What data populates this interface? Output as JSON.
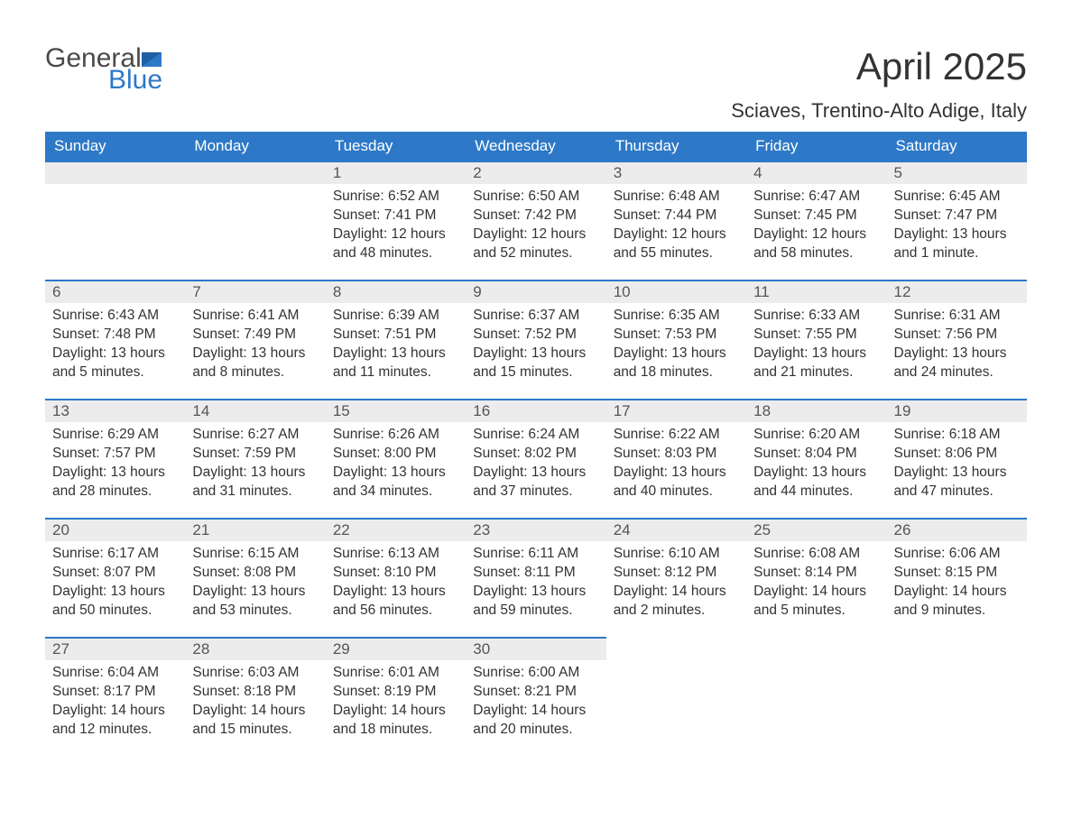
{
  "logo": {
    "word1": "General",
    "word2": "Blue"
  },
  "title": "April 2025",
  "location": "Sciaves, Trentino-Alto Adige, Italy",
  "colors": {
    "header_bg": "#2d79c7",
    "header_text": "#ffffff",
    "daynum_bg": "#ececec",
    "daynum_border": "#2d79c7",
    "body_text": "#333333",
    "logo_gray": "#4a4a4a",
    "logo_blue": "#2d79c7",
    "page_bg": "#ffffff"
  },
  "weekdays": [
    "Sunday",
    "Monday",
    "Tuesday",
    "Wednesday",
    "Thursday",
    "Friday",
    "Saturday"
  ],
  "weeks": [
    [
      null,
      null,
      {
        "n": "1",
        "sunrise": "Sunrise: 6:52 AM",
        "sunset": "Sunset: 7:41 PM",
        "daylight": "Daylight: 12 hours and 48 minutes."
      },
      {
        "n": "2",
        "sunrise": "Sunrise: 6:50 AM",
        "sunset": "Sunset: 7:42 PM",
        "daylight": "Daylight: 12 hours and 52 minutes."
      },
      {
        "n": "3",
        "sunrise": "Sunrise: 6:48 AM",
        "sunset": "Sunset: 7:44 PM",
        "daylight": "Daylight: 12 hours and 55 minutes."
      },
      {
        "n": "4",
        "sunrise": "Sunrise: 6:47 AM",
        "sunset": "Sunset: 7:45 PM",
        "daylight": "Daylight: 12 hours and 58 minutes."
      },
      {
        "n": "5",
        "sunrise": "Sunrise: 6:45 AM",
        "sunset": "Sunset: 7:47 PM",
        "daylight": "Daylight: 13 hours and 1 minute."
      }
    ],
    [
      {
        "n": "6",
        "sunrise": "Sunrise: 6:43 AM",
        "sunset": "Sunset: 7:48 PM",
        "daylight": "Daylight: 13 hours and 5 minutes."
      },
      {
        "n": "7",
        "sunrise": "Sunrise: 6:41 AM",
        "sunset": "Sunset: 7:49 PM",
        "daylight": "Daylight: 13 hours and 8 minutes."
      },
      {
        "n": "8",
        "sunrise": "Sunrise: 6:39 AM",
        "sunset": "Sunset: 7:51 PM",
        "daylight": "Daylight: 13 hours and 11 minutes."
      },
      {
        "n": "9",
        "sunrise": "Sunrise: 6:37 AM",
        "sunset": "Sunset: 7:52 PM",
        "daylight": "Daylight: 13 hours and 15 minutes."
      },
      {
        "n": "10",
        "sunrise": "Sunrise: 6:35 AM",
        "sunset": "Sunset: 7:53 PM",
        "daylight": "Daylight: 13 hours and 18 minutes."
      },
      {
        "n": "11",
        "sunrise": "Sunrise: 6:33 AM",
        "sunset": "Sunset: 7:55 PM",
        "daylight": "Daylight: 13 hours and 21 minutes."
      },
      {
        "n": "12",
        "sunrise": "Sunrise: 6:31 AM",
        "sunset": "Sunset: 7:56 PM",
        "daylight": "Daylight: 13 hours and 24 minutes."
      }
    ],
    [
      {
        "n": "13",
        "sunrise": "Sunrise: 6:29 AM",
        "sunset": "Sunset: 7:57 PM",
        "daylight": "Daylight: 13 hours and 28 minutes."
      },
      {
        "n": "14",
        "sunrise": "Sunrise: 6:27 AM",
        "sunset": "Sunset: 7:59 PM",
        "daylight": "Daylight: 13 hours and 31 minutes."
      },
      {
        "n": "15",
        "sunrise": "Sunrise: 6:26 AM",
        "sunset": "Sunset: 8:00 PM",
        "daylight": "Daylight: 13 hours and 34 minutes."
      },
      {
        "n": "16",
        "sunrise": "Sunrise: 6:24 AM",
        "sunset": "Sunset: 8:02 PM",
        "daylight": "Daylight: 13 hours and 37 minutes."
      },
      {
        "n": "17",
        "sunrise": "Sunrise: 6:22 AM",
        "sunset": "Sunset: 8:03 PM",
        "daylight": "Daylight: 13 hours and 40 minutes."
      },
      {
        "n": "18",
        "sunrise": "Sunrise: 6:20 AM",
        "sunset": "Sunset: 8:04 PM",
        "daylight": "Daylight: 13 hours and 44 minutes."
      },
      {
        "n": "19",
        "sunrise": "Sunrise: 6:18 AM",
        "sunset": "Sunset: 8:06 PM",
        "daylight": "Daylight: 13 hours and 47 minutes."
      }
    ],
    [
      {
        "n": "20",
        "sunrise": "Sunrise: 6:17 AM",
        "sunset": "Sunset: 8:07 PM",
        "daylight": "Daylight: 13 hours and 50 minutes."
      },
      {
        "n": "21",
        "sunrise": "Sunrise: 6:15 AM",
        "sunset": "Sunset: 8:08 PM",
        "daylight": "Daylight: 13 hours and 53 minutes."
      },
      {
        "n": "22",
        "sunrise": "Sunrise: 6:13 AM",
        "sunset": "Sunset: 8:10 PM",
        "daylight": "Daylight: 13 hours and 56 minutes."
      },
      {
        "n": "23",
        "sunrise": "Sunrise: 6:11 AM",
        "sunset": "Sunset: 8:11 PM",
        "daylight": "Daylight: 13 hours and 59 minutes."
      },
      {
        "n": "24",
        "sunrise": "Sunrise: 6:10 AM",
        "sunset": "Sunset: 8:12 PM",
        "daylight": "Daylight: 14 hours and 2 minutes."
      },
      {
        "n": "25",
        "sunrise": "Sunrise: 6:08 AM",
        "sunset": "Sunset: 8:14 PM",
        "daylight": "Daylight: 14 hours and 5 minutes."
      },
      {
        "n": "26",
        "sunrise": "Sunrise: 6:06 AM",
        "sunset": "Sunset: 8:15 PM",
        "daylight": "Daylight: 14 hours and 9 minutes."
      }
    ],
    [
      {
        "n": "27",
        "sunrise": "Sunrise: 6:04 AM",
        "sunset": "Sunset: 8:17 PM",
        "daylight": "Daylight: 14 hours and 12 minutes."
      },
      {
        "n": "28",
        "sunrise": "Sunrise: 6:03 AM",
        "sunset": "Sunset: 8:18 PM",
        "daylight": "Daylight: 14 hours and 15 minutes."
      },
      {
        "n": "29",
        "sunrise": "Sunrise: 6:01 AM",
        "sunset": "Sunset: 8:19 PM",
        "daylight": "Daylight: 14 hours and 18 minutes."
      },
      {
        "n": "30",
        "sunrise": "Sunrise: 6:00 AM",
        "sunset": "Sunset: 8:21 PM",
        "daylight": "Daylight: 14 hours and 20 minutes."
      },
      null,
      null,
      null
    ]
  ]
}
